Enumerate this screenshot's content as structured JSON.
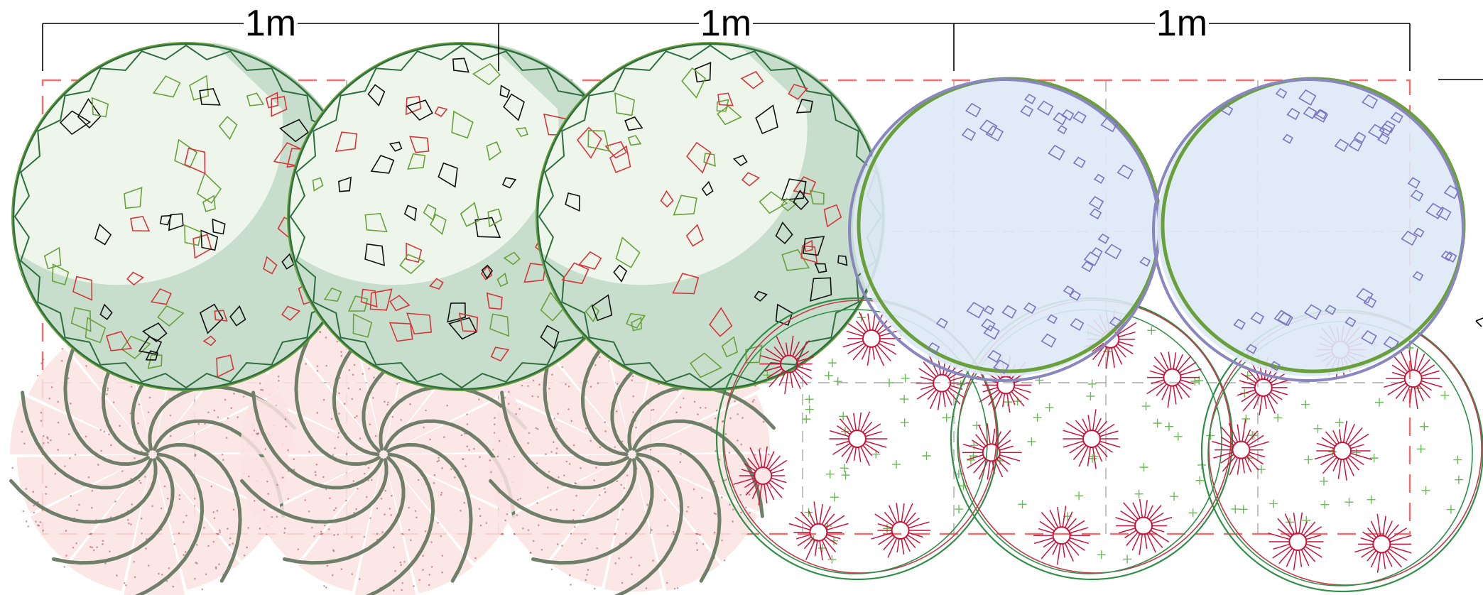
{
  "dimension_labels": [
    "1m",
    "1m",
    "1m"
  ],
  "colors": {
    "background": "#ffffff",
    "grid_outline": "#ee6e6e",
    "grid_inner": "#a9a9a9",
    "dimension_line": "#000000",
    "fern_fill": "#eef6ec",
    "fern_ring": "#b9d6c2",
    "fern_ring_dark": "#9cc4a8",
    "fern_edge": "#2f6e3f",
    "fern_leaf_green": "#6aa03a",
    "fern_leaf_red": "#d8353a",
    "fern_leaf_black": "#111111",
    "spiral_fill": "#fbe3e3",
    "spiral_stroke": "#6f7f6a",
    "spiral_dots": "#a05060",
    "blue_fill": "#dde9f6",
    "blue_edge": "#8a86bf",
    "blue_edge_green": "#6aa03a",
    "blue_leaf": "#7c74c4",
    "flower_circle": "#2e8f45",
    "flower_circle_red": "#c9374a",
    "flower_burst": "#c8143c",
    "flower_plus": "#6abb55"
  },
  "icons": {
    "fern_plant": "fern-plant-icon",
    "spiral_plant": "spiral-plant-icon",
    "blue_shrub": "blue-shrub-icon",
    "flower_cluster": "flower-cluster-icon"
  }
}
